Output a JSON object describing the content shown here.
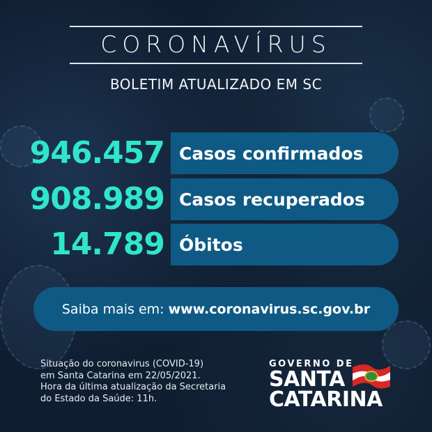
{
  "header": {
    "title": "CORONAVÍRUS",
    "subtitle": "BOLETIM ATUALIZADO EM SC"
  },
  "stats": [
    {
      "value": "946.457",
      "label": "Casos confirmados"
    },
    {
      "value": "908.989",
      "label": "Casos recuperados"
    },
    {
      "value": "14.789",
      "label": "Óbitos"
    }
  ],
  "link": {
    "prefix": "Saiba mais em:",
    "url": "www.coronavirus.sc.gov.br"
  },
  "footer": {
    "lines": [
      "Situação do coronavirus (COVID-19)",
      "em Santa Catarina em 22/05/2021.",
      "Hora da última atualização da Secretaria",
      "do Estado da Saúde: 11h."
    ]
  },
  "logo": {
    "line1": "GOVERNO DE",
    "line2": "SANTA",
    "line3": "CATARINA"
  },
  "colors": {
    "background": "#0f1d30",
    "accent": "#2fe6cb",
    "bar": "#0e5a84",
    "flag_red": "#d62828"
  }
}
